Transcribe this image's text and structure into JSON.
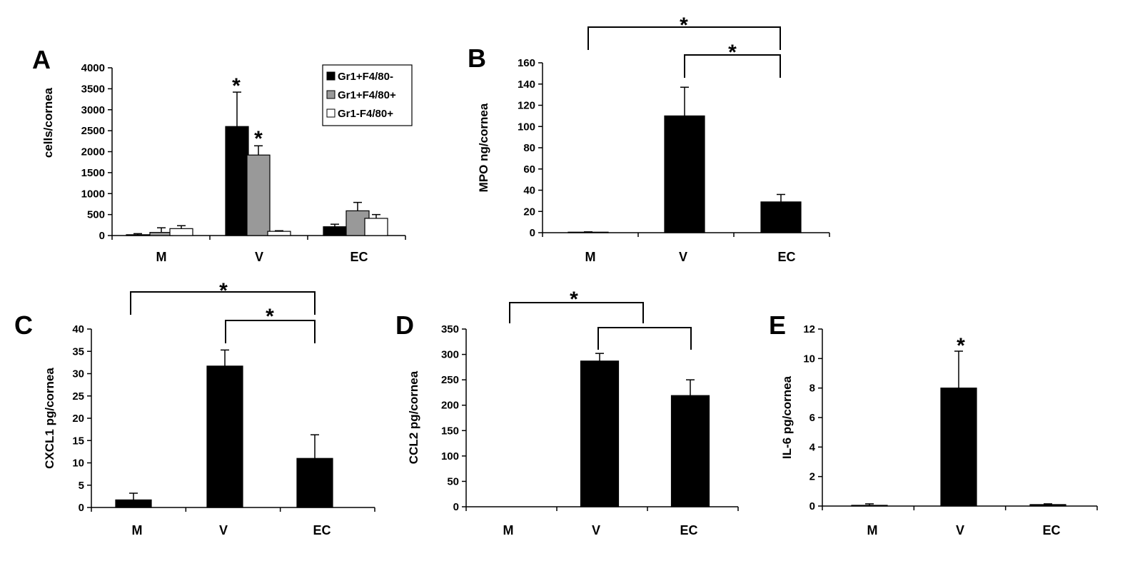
{
  "chart_data": [
    {
      "panel_label": "A",
      "type": "bar",
      "ylabel": "cells/cornea",
      "ylim": [
        0,
        4000
      ],
      "yticks": [
        0,
        500,
        1000,
        1500,
        2000,
        2500,
        3000,
        3500,
        4000
      ],
      "categories": [
        "M",
        "V",
        "EC"
      ],
      "series": [
        {
          "name": "Gr1+F4/80-",
          "color": "#000000",
          "values": [
            20,
            2600,
            210
          ],
          "errors": [
            25,
            820,
            60
          ]
        },
        {
          "name": "Gr1+F4/80+",
          "color": "#999999",
          "values": [
            75,
            1920,
            590
          ],
          "errors": [
            110,
            220,
            200
          ]
        },
        {
          "name": "Gr1-F4/80+",
          "color": "#ffffff",
          "values": [
            165,
            100,
            410
          ],
          "errors": [
            70,
            15,
            90
          ]
        }
      ],
      "legend": "top-right",
      "significance": [
        {
          "category": "V",
          "series": 0,
          "label": "*"
        },
        {
          "category": "V",
          "series": 1,
          "label": "*"
        }
      ]
    },
    {
      "panel_label": "B",
      "type": "bar",
      "ylabel": "MPO ng/cornea",
      "ylim": [
        0,
        160
      ],
      "yticks": [
        0,
        20,
        40,
        60,
        80,
        100,
        120,
        140,
        160
      ],
      "categories": [
        "M",
        "V",
        "EC"
      ],
      "values": [
        0.5,
        110,
        29
      ],
      "errors": [
        0.3,
        27,
        7
      ],
      "brackets": [
        {
          "from": "M",
          "to": "EC",
          "label": "*"
        },
        {
          "from": "V",
          "to": "EC",
          "label": "*"
        }
      ]
    },
    {
      "panel_label": "C",
      "type": "bar",
      "ylabel": "CXCL1 pg/cornea",
      "ylim": [
        0,
        40
      ],
      "yticks": [
        0,
        5,
        10,
        15,
        20,
        25,
        30,
        35,
        40
      ],
      "categories": [
        "M",
        "V",
        "EC"
      ],
      "values": [
        1.7,
        31.7,
        11
      ],
      "errors": [
        1.5,
        3.6,
        5.3
      ],
      "brackets": [
        {
          "from": "M",
          "to": "EC",
          "label": "*"
        },
        {
          "from": "V",
          "to": "EC",
          "label": "*"
        }
      ]
    },
    {
      "panel_label": "D",
      "type": "bar",
      "ylabel": "CCL2 pg/cornea",
      "ylim": [
        0,
        350
      ],
      "yticks": [
        0,
        50,
        100,
        150,
        200,
        250,
        300,
        350
      ],
      "categories": [
        "M",
        "V",
        "EC"
      ],
      "values": [
        0,
        287,
        219
      ],
      "errors": [
        0,
        15,
        31
      ],
      "brackets": [
        {
          "from": "M",
          "to": "V",
          "label": "*"
        },
        {
          "from": "V",
          "to": "EC",
          "label": ""
        }
      ]
    },
    {
      "panel_label": "E",
      "type": "bar",
      "ylabel": "IL-6 pg/cornea",
      "ylim": [
        0,
        12
      ],
      "yticks": [
        0,
        2,
        4,
        6,
        8,
        10,
        12
      ],
      "categories": [
        "M",
        "V",
        "EC"
      ],
      "values": [
        0.05,
        8,
        0.1
      ],
      "errors": [
        0.1,
        2.5,
        0.05
      ],
      "significance": [
        {
          "category": "V",
          "label": "*"
        }
      ]
    }
  ]
}
